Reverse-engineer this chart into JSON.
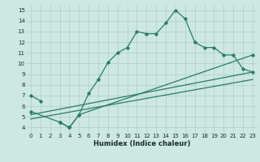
{
  "xlabel": "Humidex (Indice chaleur)",
  "bg_color": "#cce8e0",
  "line_color": "#2a7a6a",
  "grid_color": "#b0ccc8",
  "xlim": [
    -0.5,
    23.5
  ],
  "ylim": [
    3.5,
    15.5
  ],
  "xticks": [
    0,
    1,
    2,
    3,
    4,
    5,
    6,
    7,
    8,
    9,
    10,
    11,
    12,
    13,
    14,
    15,
    16,
    17,
    18,
    19,
    20,
    21,
    22,
    23
  ],
  "yticks": [
    4,
    5,
    6,
    7,
    8,
    9,
    10,
    11,
    12,
    13,
    14,
    15
  ],
  "main_x": [
    0,
    1,
    2,
    3,
    4,
    5,
    6,
    7,
    8,
    9,
    10,
    11,
    12,
    13,
    14,
    15,
    16,
    17,
    18,
    19,
    20,
    21,
    22,
    23
  ],
  "main_y": [
    7.0,
    6.5,
    null,
    4.5,
    4.0,
    5.2,
    7.2,
    8.5,
    10.1,
    11.0,
    11.5,
    13.0,
    12.8,
    12.8,
    13.8,
    15.0,
    14.2,
    12.0,
    11.5,
    11.5,
    10.8,
    10.8,
    9.5,
    9.2
  ],
  "line2_x": [
    0,
    23
  ],
  "line2_y": [
    5.2,
    9.2
  ],
  "line3_x": [
    0,
    23
  ],
  "line3_y": [
    4.8,
    8.5
  ],
  "line4_x": [
    0,
    3,
    4,
    5,
    23
  ],
  "line4_y": [
    5.5,
    4.5,
    4.0,
    5.2,
    10.8
  ],
  "marker_x": [
    0,
    1,
    3,
    4,
    5,
    6,
    7,
    8,
    9,
    10,
    11,
    12,
    13,
    14,
    15,
    16,
    17,
    18,
    19,
    20,
    21,
    22,
    23
  ],
  "marker_y": [
    7.0,
    6.5,
    4.5,
    4.0,
    5.2,
    7.2,
    8.5,
    10.1,
    11.0,
    11.5,
    13.0,
    12.8,
    12.8,
    13.8,
    15.0,
    14.2,
    12.0,
    11.5,
    11.5,
    10.8,
    10.8,
    9.5,
    9.2
  ]
}
